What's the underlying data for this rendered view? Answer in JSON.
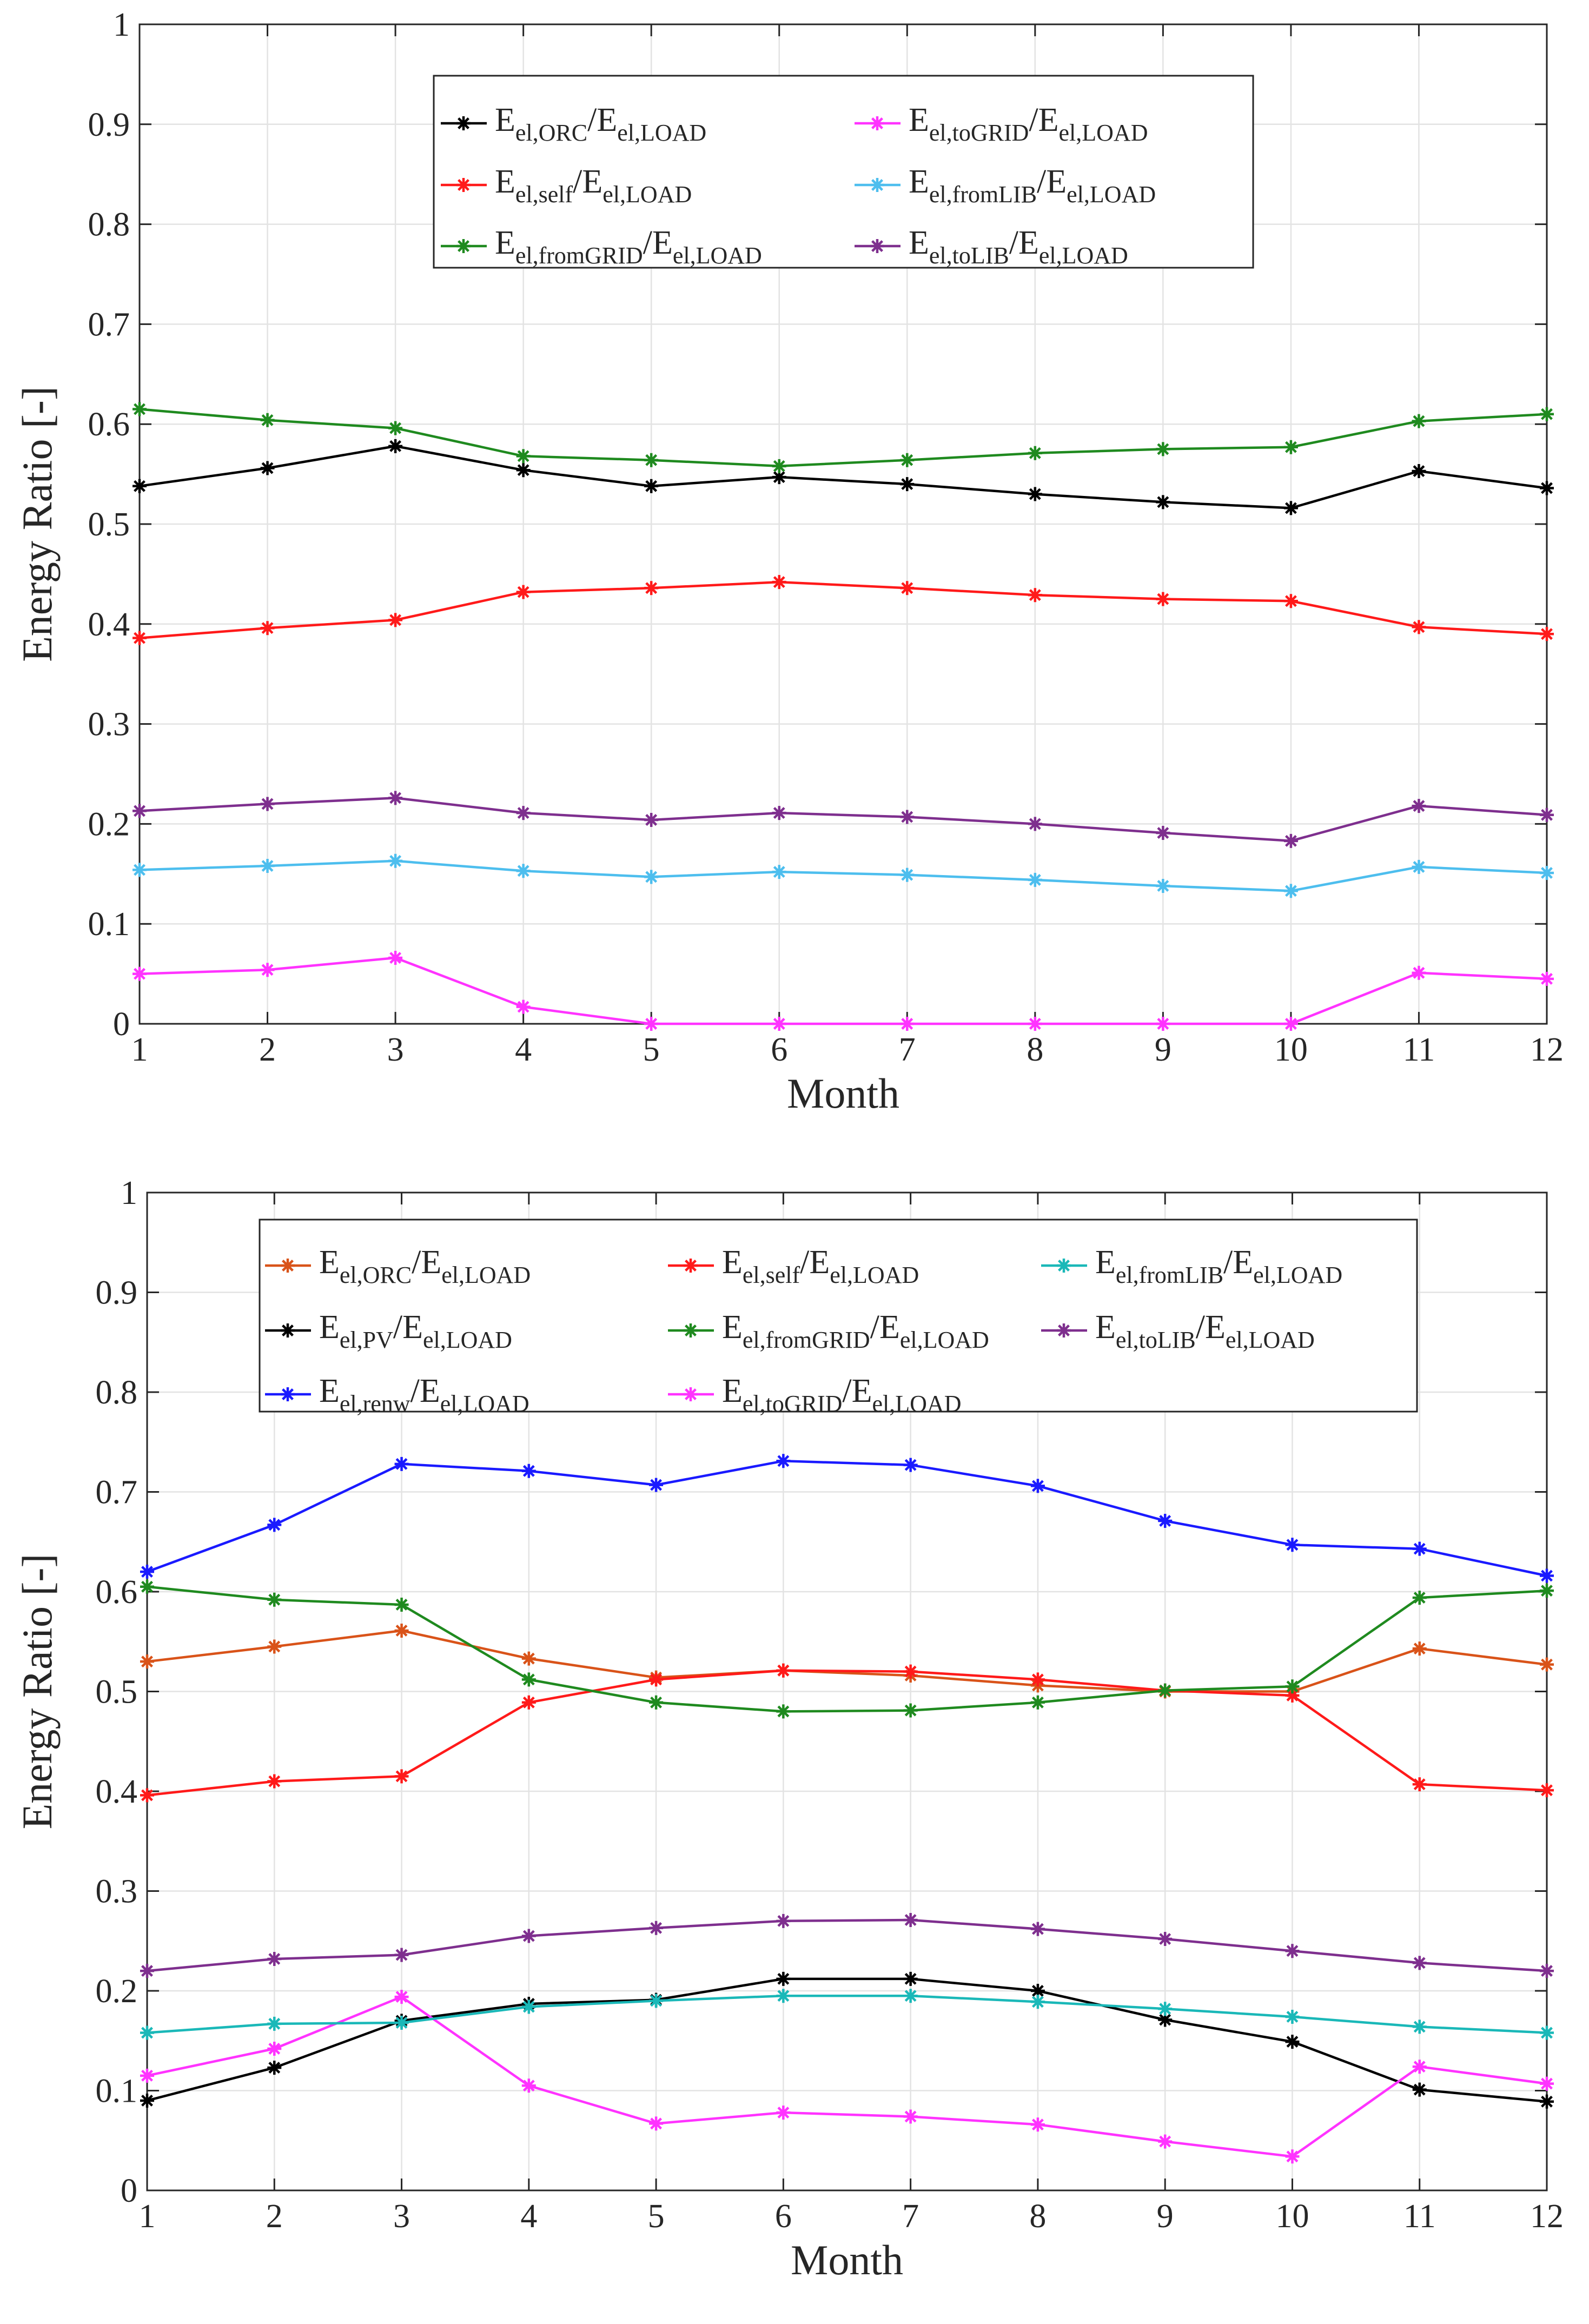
{
  "colors": {
    "black": "#000000",
    "red": "#ff1a1a",
    "green": "#1f8a1f",
    "magenta": "#ff33ff",
    "lightblue": "#4dbeee",
    "purple": "#7e2f8e",
    "orange": "#d95319",
    "cyan": "#1ab8b8",
    "blue": "#1a1aff",
    "grid": "#e3e3e3"
  },
  "chart_data": [
    {
      "type": "line",
      "title": "",
      "xlabel": "Month",
      "ylabel": "Energy Ratio [-]",
      "xlim": [
        1,
        12
      ],
      "ylim": [
        0,
        1
      ],
      "x": [
        1,
        2,
        3,
        4,
        5,
        6,
        7,
        8,
        9,
        10,
        11,
        12
      ],
      "xticks": [
        "1",
        "2",
        "3",
        "4",
        "5",
        "6",
        "7",
        "8",
        "9",
        "10",
        "11",
        "12"
      ],
      "yticks": [
        "0",
        "0.1",
        "0.2",
        "0.3",
        "0.4",
        "0.5",
        "0.6",
        "0.7",
        "0.8",
        "0.9",
        "1"
      ],
      "grid": true,
      "legend_position": "top-center",
      "series": [
        {
          "name": "E_el,ORC/E_el,LOAD",
          "main": "E",
          "sub": "el,ORC",
          "mid": "/E",
          "sub2": "el,LOAD",
          "color": "black",
          "values": [
            0.538,
            0.556,
            0.578,
            0.554,
            0.538,
            0.547,
            0.54,
            0.53,
            0.522,
            0.516,
            0.553,
            0.536
          ]
        },
        {
          "name": "E_el,self/E_el,LOAD",
          "main": "E",
          "sub": "el,self",
          "mid": "/E",
          "sub2": "el,LOAD",
          "color": "red",
          "values": [
            0.386,
            0.396,
            0.404,
            0.432,
            0.436,
            0.442,
            0.436,
            0.429,
            0.425,
            0.423,
            0.397,
            0.39
          ]
        },
        {
          "name": "E_el,fromGRID/E_el,LOAD",
          "main": "E",
          "sub": "el,fromGRID",
          "mid": "/E",
          "sub2": "el,LOAD",
          "color": "green",
          "values": [
            0.615,
            0.604,
            0.596,
            0.568,
            0.564,
            0.558,
            0.564,
            0.571,
            0.575,
            0.577,
            0.603,
            0.61
          ]
        },
        {
          "name": "E_el,toGRID/E_el,LOAD",
          "main": "E",
          "sub": "el,toGRID",
          "mid": "/E",
          "sub2": "el,LOAD",
          "color": "magenta",
          "values": [
            0.05,
            0.054,
            0.066,
            0.017,
            0.0,
            0.0,
            0.0,
            0.0,
            0.0,
            0.0,
            0.051,
            0.045
          ]
        },
        {
          "name": "E_el,fromLIB/E_el,LOAD",
          "main": "E",
          "sub": "el,fromLIB",
          "mid": "/E",
          "sub2": "el,LOAD",
          "color": "lightblue",
          "values": [
            0.154,
            0.158,
            0.163,
            0.153,
            0.147,
            0.152,
            0.149,
            0.144,
            0.138,
            0.133,
            0.157,
            0.151
          ]
        },
        {
          "name": "E_el,toLIB/E_el,LOAD",
          "main": "E",
          "sub": "el,toLIB",
          "mid": "/E",
          "sub2": "el,LOAD",
          "color": "purple",
          "values": [
            0.213,
            0.22,
            0.226,
            0.211,
            0.204,
            0.211,
            0.207,
            0.2,
            0.191,
            0.183,
            0.218,
            0.209
          ]
        }
      ]
    },
    {
      "type": "line",
      "title": "",
      "xlabel": "Month",
      "ylabel": "Energy Ratio [-]",
      "xlim": [
        1,
        12
      ],
      "ylim": [
        0,
        1
      ],
      "x": [
        1,
        2,
        3,
        4,
        5,
        6,
        7,
        8,
        9,
        10,
        11,
        12
      ],
      "xticks": [
        "1",
        "2",
        "3",
        "4",
        "5",
        "6",
        "7",
        "8",
        "9",
        "10",
        "11",
        "12"
      ],
      "yticks": [
        "0",
        "0.1",
        "0.2",
        "0.3",
        "0.4",
        "0.5",
        "0.6",
        "0.7",
        "0.8",
        "0.9",
        "1"
      ],
      "grid": true,
      "legend_position": "top-center",
      "series": [
        {
          "name": "E_el,ORC/E_el,LOAD",
          "main": "E",
          "sub": "el,ORC",
          "mid": "/E",
          "sub2": "el,LOAD",
          "color": "orange",
          "values": [
            0.53,
            0.545,
            0.561,
            0.533,
            0.514,
            0.521,
            0.516,
            0.506,
            0.5,
            0.5,
            0.543,
            0.527
          ]
        },
        {
          "name": "E_el,PV/E_el,LOAD",
          "main": "E",
          "sub": "el,PV",
          "mid": "/E",
          "sub2": "el,LOAD",
          "color": "black",
          "values": [
            0.09,
            0.123,
            0.17,
            0.187,
            0.191,
            0.212,
            0.212,
            0.2,
            0.171,
            0.149,
            0.101,
            0.089
          ]
        },
        {
          "name": "E_el,renw/E_el,LOAD",
          "main": "E",
          "sub": "el,renw",
          "mid": "/E",
          "sub2": "el,LOAD",
          "color": "blue",
          "values": [
            0.62,
            0.667,
            0.728,
            0.721,
            0.707,
            0.731,
            0.727,
            0.706,
            0.671,
            0.647,
            0.643,
            0.616
          ]
        },
        {
          "name": "E_el,self/E_el,LOAD",
          "main": "E",
          "sub": "el,self",
          "mid": "/E",
          "sub2": "el,LOAD",
          "color": "red",
          "values": [
            0.396,
            0.41,
            0.415,
            0.489,
            0.512,
            0.521,
            0.52,
            0.512,
            0.501,
            0.496,
            0.407,
            0.401
          ]
        },
        {
          "name": "E_el,fromGRID/E_el,LOAD",
          "main": "E",
          "sub": "el,fromGRID",
          "mid": "/E",
          "sub2": "el,LOAD",
          "color": "green",
          "values": [
            0.605,
            0.592,
            0.587,
            0.512,
            0.489,
            0.48,
            0.481,
            0.489,
            0.501,
            0.505,
            0.594,
            0.601
          ]
        },
        {
          "name": "E_el,toGRID/E_el,LOAD",
          "main": "E",
          "sub": "el,toGRID",
          "mid": "/E",
          "sub2": "el,LOAD",
          "color": "magenta",
          "values": [
            0.115,
            0.142,
            0.194,
            0.105,
            0.067,
            0.078,
            0.074,
            0.066,
            0.049,
            0.034,
            0.124,
            0.107
          ]
        },
        {
          "name": "E_el,fromLIB/E_el,LOAD",
          "main": "E",
          "sub": "el,fromLIB",
          "mid": "/E",
          "sub2": "el,LOAD",
          "color": "cyan",
          "values": [
            0.158,
            0.167,
            0.168,
            0.184,
            0.19,
            0.195,
            0.195,
            0.189,
            0.182,
            0.174,
            0.164,
            0.158
          ]
        },
        {
          "name": "E_el,toLIB/E_el,LOAD",
          "main": "E",
          "sub": "el,toLIB",
          "mid": "/E",
          "sub2": "el,LOAD",
          "color": "purple",
          "values": [
            0.22,
            0.232,
            0.236,
            0.255,
            0.263,
            0.27,
            0.271,
            0.262,
            0.252,
            0.24,
            0.228,
            0.22
          ]
        }
      ]
    }
  ]
}
